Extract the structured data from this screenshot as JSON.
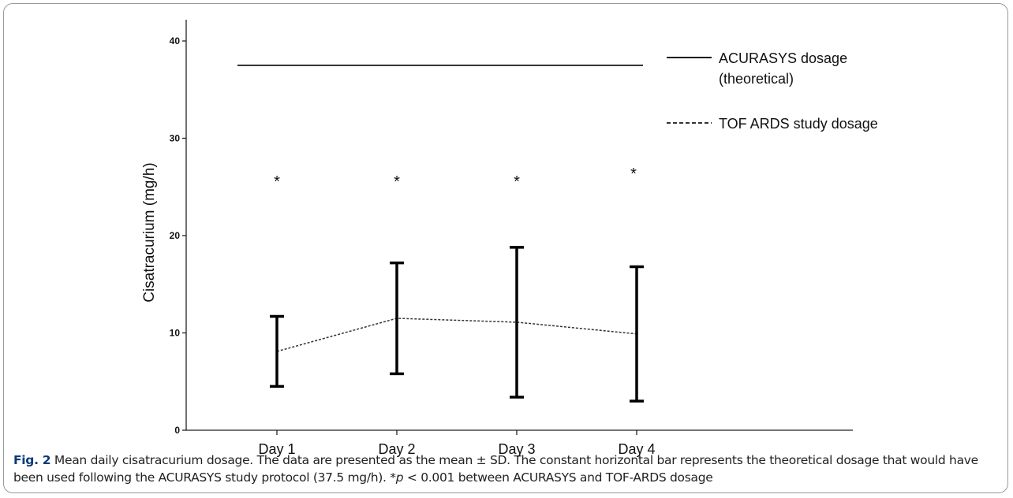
{
  "chart_data": {
    "type": "line",
    "y_label": "Cisatracurium (mg/h)",
    "categories": [
      "Day 1",
      "Day 2",
      "Day 3",
      "Day 4"
    ],
    "series": [
      {
        "name": "ACURASYS dosage (theoretical)",
        "legend_lines": [
          "ACURASYS dosage",
          "(theoretical)"
        ],
        "color": "#111111",
        "dash": "solid",
        "values": [
          37.5,
          37.5,
          37.5,
          37.5
        ]
      },
      {
        "name": "TOF ARDS study dosage",
        "color": "#333333",
        "dash": "dashed",
        "values": [
          8.1,
          11.5,
          11.1,
          9.9
        ],
        "errors": [
          3.6,
          5.7,
          7.7,
          6.9
        ]
      }
    ],
    "annotations": [
      "*",
      "*",
      "*",
      "*"
    ],
    "ylim": [
      0,
      40
    ],
    "yticks": [
      0,
      10,
      20,
      30,
      40
    ]
  },
  "caption": {
    "label": "Fig. 2",
    "parts": [
      " Mean daily cisatracurium dosage. The data are presented as the mean ± SD. The constant horizontal bar represents the theoretical dosage that would have been used following the ACURASYS study protocol (37.5 mg/h). *",
      "p",
      " < 0.001 between ACURASYS and TOF-ARDS dosage"
    ]
  }
}
